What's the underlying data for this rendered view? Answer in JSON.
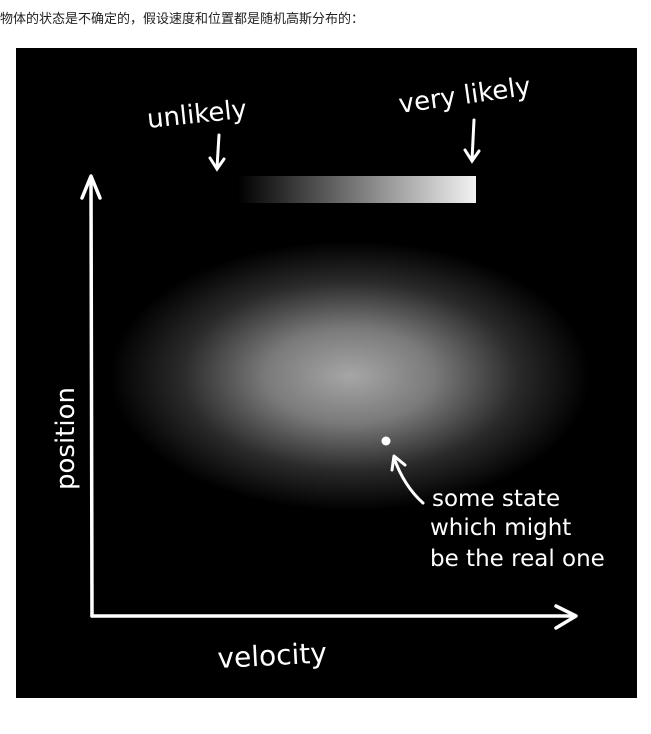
{
  "caption": "物体的状态是不确定的，假设速度和位置都是随机高斯分布的：",
  "diagram": {
    "legend": {
      "low_label": "unlikely",
      "high_label": "very likely"
    },
    "x_axis_label": "velocity",
    "y_axis_label": "position",
    "annotation": {
      "line1": "some state",
      "line2": "which might",
      "line3": "be the real one"
    },
    "colors": {
      "background": "#000000",
      "foreground": "#ffffff"
    }
  }
}
